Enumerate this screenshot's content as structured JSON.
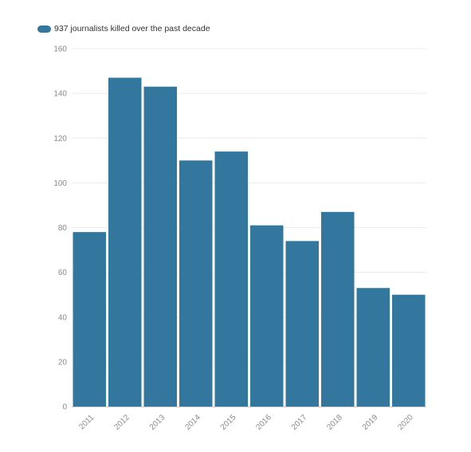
{
  "legend": {
    "label": "937 journalists killed over the past decade"
  },
  "colors": {
    "bar": "#33779e",
    "grid": "#ececec",
    "axis": "#cccccc",
    "tick_text": "#8a8a8a"
  },
  "chart_data": {
    "type": "bar",
    "categories": [
      "2011",
      "2012",
      "2013",
      "2014",
      "2015",
      "2016",
      "2017",
      "2018",
      "2019",
      "2020"
    ],
    "series": [
      {
        "name": "937 journalists killed over the past decade",
        "values": [
          78,
          147,
          143,
          110,
          114,
          81,
          74,
          87,
          53,
          50
        ]
      }
    ],
    "ylim": [
      0,
      160
    ],
    "yticks": [
      0,
      20,
      40,
      60,
      80,
      100,
      120,
      140,
      160
    ],
    "grid": true,
    "legend_position": "top-left"
  }
}
